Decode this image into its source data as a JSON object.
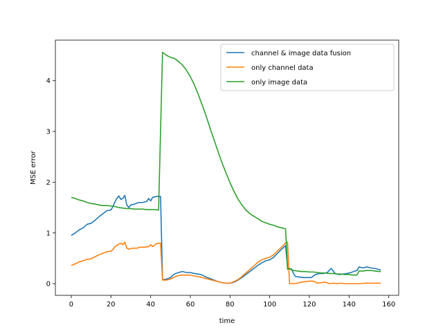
{
  "chart_data": {
    "type": "line",
    "title": "",
    "xlabel": "time",
    "ylabel": "MSE error",
    "xlim": [
      -8,
      165
    ],
    "ylim": [
      -0.23,
      4.8
    ],
    "xticks": [
      0,
      20,
      40,
      60,
      80,
      100,
      120,
      140,
      160
    ],
    "yticks": [
      0,
      1,
      2,
      3,
      4
    ],
    "grid": false,
    "legend_position": "upper right",
    "series": [
      {
        "name": "channel & image data fusion",
        "color": "#1f77b4",
        "points": [
          [
            0,
            0.95
          ],
          [
            2,
            1.0
          ],
          [
            4,
            1.06
          ],
          [
            6,
            1.1
          ],
          [
            8,
            1.17
          ],
          [
            10,
            1.19
          ],
          [
            12,
            1.25
          ],
          [
            14,
            1.32
          ],
          [
            16,
            1.38
          ],
          [
            18,
            1.44
          ],
          [
            20,
            1.45
          ],
          [
            21,
            1.52
          ],
          [
            22,
            1.61
          ],
          [
            23,
            1.68
          ],
          [
            24,
            1.73
          ],
          [
            25,
            1.66
          ],
          [
            26,
            1.68
          ],
          [
            27,
            1.74
          ],
          [
            28,
            1.55
          ],
          [
            29,
            1.5
          ],
          [
            30,
            1.55
          ],
          [
            32,
            1.57
          ],
          [
            34,
            1.6
          ],
          [
            36,
            1.6
          ],
          [
            38,
            1.62
          ],
          [
            39,
            1.68
          ],
          [
            40,
            1.63
          ],
          [
            41,
            1.7
          ],
          [
            43,
            1.72
          ],
          [
            45,
            1.72
          ],
          [
            46,
            0.08
          ],
          [
            48,
            0.09
          ],
          [
            50,
            0.12
          ],
          [
            52,
            0.19
          ],
          [
            54,
            0.22
          ],
          [
            56,
            0.24
          ],
          [
            58,
            0.22
          ],
          [
            60,
            0.22
          ],
          [
            62,
            0.2
          ],
          [
            64,
            0.19
          ],
          [
            66,
            0.17
          ],
          [
            68,
            0.13
          ],
          [
            70,
            0.1
          ],
          [
            72,
            0.07
          ],
          [
            74,
            0.04
          ],
          [
            76,
            0.02
          ],
          [
            78,
            0.01
          ],
          [
            80,
            0.01
          ],
          [
            82,
            0.03
          ],
          [
            84,
            0.07
          ],
          [
            86,
            0.12
          ],
          [
            88,
            0.18
          ],
          [
            90,
            0.24
          ],
          [
            92,
            0.3
          ],
          [
            94,
            0.36
          ],
          [
            96,
            0.41
          ],
          [
            98,
            0.45
          ],
          [
            100,
            0.47
          ],
          [
            102,
            0.52
          ],
          [
            104,
            0.6
          ],
          [
            106,
            0.68
          ],
          [
            108,
            0.75
          ],
          [
            109,
            0.3
          ],
          [
            110,
            0.3
          ],
          [
            111,
            0.29
          ],
          [
            112,
            0.2
          ],
          [
            113,
            0.14
          ],
          [
            115,
            0.13
          ],
          [
            117,
            0.12
          ],
          [
            119,
            0.12
          ],
          [
            121,
            0.12
          ],
          [
            123,
            0.18
          ],
          [
            125,
            0.2
          ],
          [
            127,
            0.2
          ],
          [
            129,
            0.22
          ],
          [
            131,
            0.3
          ],
          [
            133,
            0.2
          ],
          [
            135,
            0.18
          ],
          [
            137,
            0.19
          ],
          [
            139,
            0.2
          ],
          [
            141,
            0.22
          ],
          [
            143,
            0.25
          ],
          [
            144,
            0.26
          ],
          [
            145,
            0.33
          ],
          [
            147,
            0.31
          ],
          [
            149,
            0.33
          ],
          [
            151,
            0.31
          ],
          [
            153,
            0.3
          ],
          [
            155,
            0.28
          ],
          [
            156,
            0.27
          ]
        ]
      },
      {
        "name": "only channel data",
        "color": "#ff7f0e",
        "points": [
          [
            0,
            0.36
          ],
          [
            2,
            0.39
          ],
          [
            4,
            0.43
          ],
          [
            6,
            0.45
          ],
          [
            8,
            0.48
          ],
          [
            10,
            0.49
          ],
          [
            12,
            0.53
          ],
          [
            14,
            0.57
          ],
          [
            16,
            0.6
          ],
          [
            18,
            0.63
          ],
          [
            20,
            0.64
          ],
          [
            21,
            0.67
          ],
          [
            22,
            0.73
          ],
          [
            24,
            0.78
          ],
          [
            25,
            0.8
          ],
          [
            26,
            0.77
          ],
          [
            27,
            0.82
          ],
          [
            28,
            0.7
          ],
          [
            29,
            0.68
          ],
          [
            31,
            0.7
          ],
          [
            33,
            0.7
          ],
          [
            35,
            0.72
          ],
          [
            37,
            0.72
          ],
          [
            39,
            0.73
          ],
          [
            40,
            0.77
          ],
          [
            41,
            0.73
          ],
          [
            43,
            0.79
          ],
          [
            45,
            0.8
          ],
          [
            46,
            0.07
          ],
          [
            48,
            0.07
          ],
          [
            50,
            0.09
          ],
          [
            52,
            0.13
          ],
          [
            54,
            0.16
          ],
          [
            56,
            0.17
          ],
          [
            58,
            0.17
          ],
          [
            60,
            0.17
          ],
          [
            62,
            0.15
          ],
          [
            64,
            0.14
          ],
          [
            66,
            0.12
          ],
          [
            68,
            0.1
          ],
          [
            70,
            0.08
          ],
          [
            72,
            0.06
          ],
          [
            74,
            0.04
          ],
          [
            76,
            0.02
          ],
          [
            78,
            0.01
          ],
          [
            80,
            0.01
          ],
          [
            82,
            0.04
          ],
          [
            84,
            0.08
          ],
          [
            86,
            0.14
          ],
          [
            88,
            0.21
          ],
          [
            90,
            0.28
          ],
          [
            92,
            0.35
          ],
          [
            94,
            0.42
          ],
          [
            96,
            0.47
          ],
          [
            98,
            0.5
          ],
          [
            100,
            0.52
          ],
          [
            102,
            0.57
          ],
          [
            104,
            0.65
          ],
          [
            106,
            0.72
          ],
          [
            108,
            0.8
          ],
          [
            109,
            0.82
          ],
          [
            110,
            0.0
          ],
          [
            112,
            0.0
          ],
          [
            114,
            0.01
          ],
          [
            116,
            0.03
          ],
          [
            118,
            0.04
          ],
          [
            120,
            0.05
          ],
          [
            122,
            0.05
          ],
          [
            124,
            0.01
          ],
          [
            126,
            0.02
          ],
          [
            128,
            0.03
          ],
          [
            130,
            0.0
          ],
          [
            132,
            0.01
          ],
          [
            134,
            0.0
          ],
          [
            136,
            0.01
          ],
          [
            138,
            0.0
          ],
          [
            140,
            0.0
          ],
          [
            142,
            0.0
          ],
          [
            144,
            0.0
          ],
          [
            146,
            0.0
          ],
          [
            148,
            0.01
          ],
          [
            150,
            0.01
          ],
          [
            152,
            0.01
          ],
          [
            154,
            0.01
          ],
          [
            156,
            0.01
          ]
        ]
      },
      {
        "name": "only image data",
        "color": "#2ca02c",
        "points": [
          [
            0,
            1.7
          ],
          [
            2,
            1.68
          ],
          [
            4,
            1.65
          ],
          [
            6,
            1.63
          ],
          [
            8,
            1.6
          ],
          [
            10,
            1.58
          ],
          [
            12,
            1.57
          ],
          [
            14,
            1.55
          ],
          [
            16,
            1.54
          ],
          [
            18,
            1.54
          ],
          [
            20,
            1.53
          ],
          [
            22,
            1.52
          ],
          [
            24,
            1.5
          ],
          [
            26,
            1.49
          ],
          [
            28,
            1.48
          ],
          [
            30,
            1.48
          ],
          [
            32,
            1.47
          ],
          [
            34,
            1.47
          ],
          [
            36,
            1.47
          ],
          [
            38,
            1.46
          ],
          [
            40,
            1.46
          ],
          [
            42,
            1.46
          ],
          [
            44,
            1.45
          ],
          [
            46,
            4.56
          ],
          [
            48,
            4.5
          ],
          [
            50,
            4.46
          ],
          [
            52,
            4.44
          ],
          [
            54,
            4.38
          ],
          [
            56,
            4.31
          ],
          [
            58,
            4.21
          ],
          [
            60,
            4.08
          ],
          [
            62,
            3.92
          ],
          [
            64,
            3.73
          ],
          [
            66,
            3.52
          ],
          [
            68,
            3.3
          ],
          [
            70,
            3.06
          ],
          [
            72,
            2.83
          ],
          [
            74,
            2.6
          ],
          [
            76,
            2.38
          ],
          [
            78,
            2.18
          ],
          [
            80,
            1.99
          ],
          [
            82,
            1.82
          ],
          [
            84,
            1.67
          ],
          [
            86,
            1.55
          ],
          [
            88,
            1.45
          ],
          [
            90,
            1.38
          ],
          [
            92,
            1.33
          ],
          [
            94,
            1.28
          ],
          [
            96,
            1.23
          ],
          [
            98,
            1.2
          ],
          [
            100,
            1.17
          ],
          [
            102,
            1.15
          ],
          [
            104,
            1.12
          ],
          [
            106,
            1.1
          ],
          [
            108,
            1.08
          ],
          [
            109,
            0.28
          ],
          [
            110,
            0.3
          ],
          [
            111,
            0.27
          ],
          [
            112,
            0.26
          ],
          [
            114,
            0.25
          ],
          [
            116,
            0.24
          ],
          [
            118,
            0.24
          ],
          [
            120,
            0.23
          ],
          [
            122,
            0.23
          ],
          [
            124,
            0.22
          ],
          [
            126,
            0.21
          ],
          [
            128,
            0.21
          ],
          [
            130,
            0.2
          ],
          [
            132,
            0.2
          ],
          [
            134,
            0.19
          ],
          [
            136,
            0.19
          ],
          [
            138,
            0.18
          ],
          [
            140,
            0.18
          ],
          [
            142,
            0.17
          ],
          [
            144,
            0.17
          ],
          [
            145,
            0.25
          ],
          [
            147,
            0.25
          ],
          [
            149,
            0.26
          ],
          [
            151,
            0.26
          ],
          [
            153,
            0.25
          ],
          [
            155,
            0.24
          ],
          [
            156,
            0.24
          ]
        ]
      }
    ]
  }
}
